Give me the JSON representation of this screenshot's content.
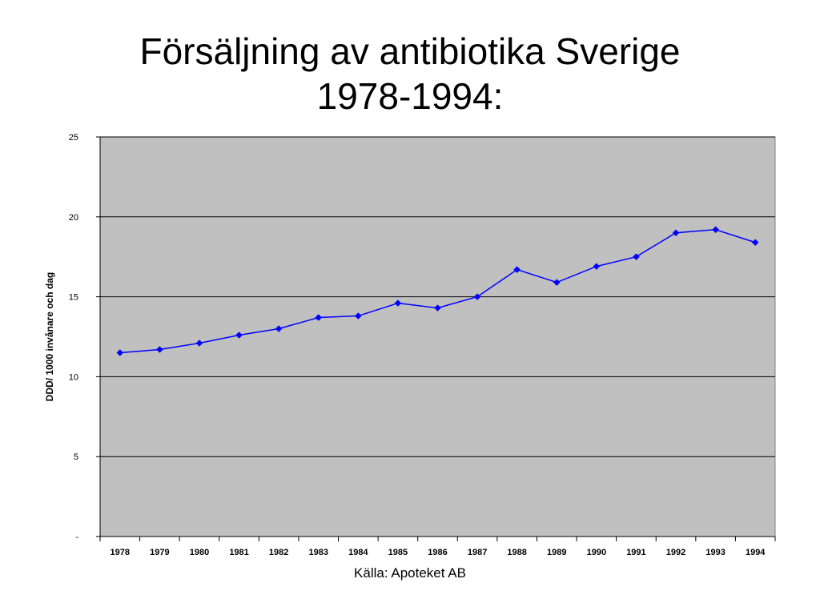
{
  "slide": {
    "title_line1": "Försäljning av antibiotika Sverige",
    "title_line2": "1978-1994:",
    "source": "Källa: Apoteket AB"
  },
  "chart_data": {
    "type": "line",
    "title": "Försäljning av antibiotika Sverige 1978-1994:",
    "xlabel": "",
    "ylabel": "DDD/ 1000 invånare och dag",
    "categories": [
      "1978",
      "1979",
      "1980",
      "1981",
      "1982",
      "1983",
      "1984",
      "1985",
      "1986",
      "1987",
      "1988",
      "1989",
      "1990",
      "1991",
      "1992",
      "1993",
      "1994"
    ],
    "series": [
      {
        "values": [
          11.5,
          11.7,
          12.1,
          12.6,
          13.0,
          13.7,
          13.8,
          14.6,
          14.3,
          15.0,
          16.7,
          15.9,
          16.9,
          17.5,
          19.0,
          19.2,
          18.4
        ],
        "color": "#0000ff",
        "marker": "diamond"
      }
    ],
    "ylim": [
      0,
      25
    ],
    "yticks": [
      0,
      5,
      10,
      15,
      20,
      25
    ],
    "ytick_labels": [
      "-",
      "5",
      "10",
      "15",
      "20",
      "25"
    ],
    "grid": true,
    "plot_background": "#c0c0c0",
    "gridline_color": "#000000",
    "legend": "none"
  }
}
